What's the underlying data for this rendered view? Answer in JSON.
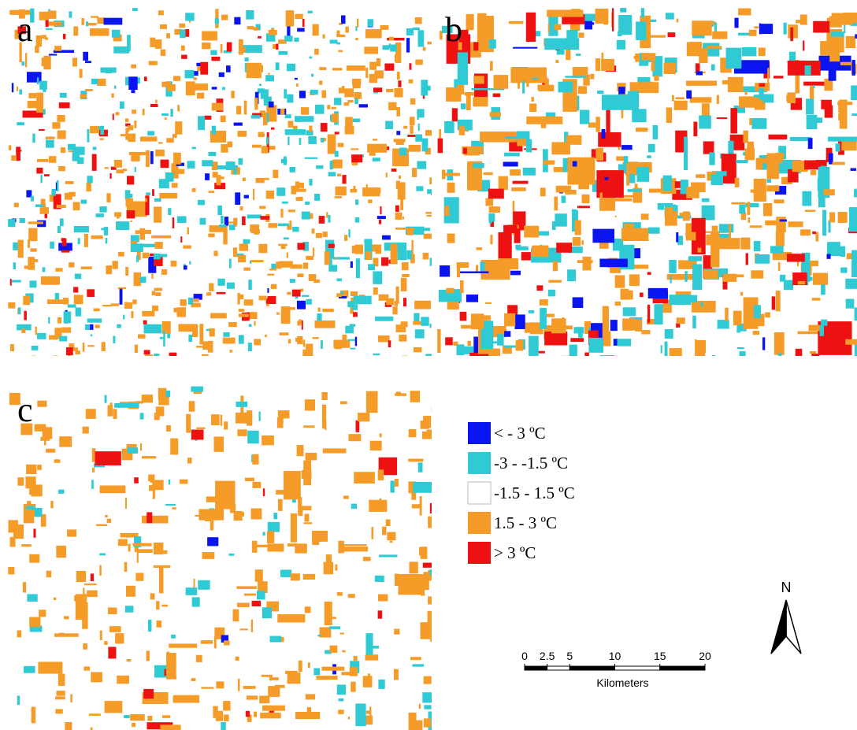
{
  "panels": [
    {
      "label": "a"
    },
    {
      "label": "b"
    },
    {
      "label": "c"
    }
  ],
  "legend": [
    {
      "label": "< - 3 ºC",
      "color": "#0a14f0"
    },
    {
      "label": "-3 - -1.5 ºC",
      "color": "#2fcad3"
    },
    {
      "label": "-1.5 - 1.5 ºC",
      "color": "#ffffff"
    },
    {
      "label": "1.5 - 3 ºC",
      "color": "#f59b28"
    },
    {
      "label": "> 3 ºC",
      "color": "#ee1111"
    }
  ],
  "north_arrow": {
    "label": "N"
  },
  "scale_bar": {
    "ticks": [
      0,
      2.5,
      5,
      10,
      15,
      20
    ],
    "unit": "Kilometers"
  }
}
